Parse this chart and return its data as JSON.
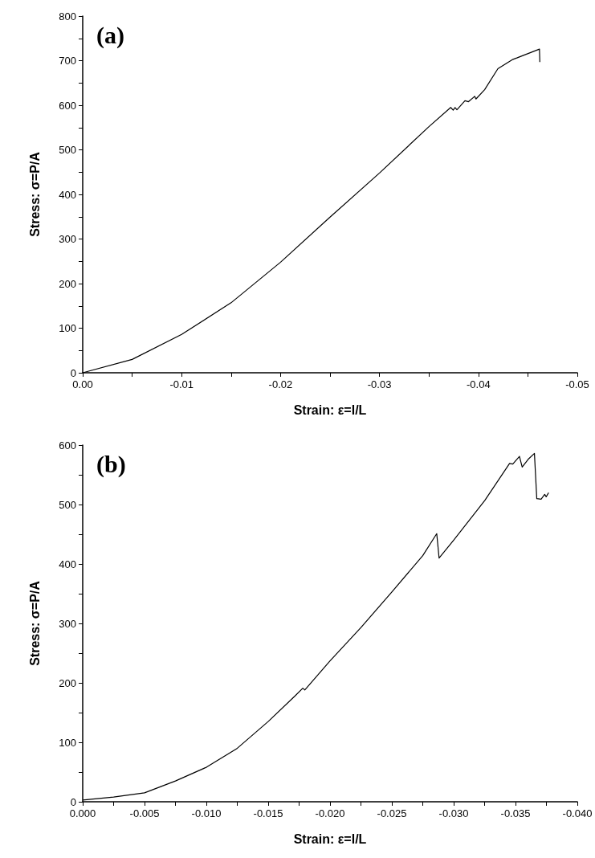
{
  "chart_data": [
    {
      "type": "line",
      "xlabel": "Strain: ε=l/L",
      "ylabel": "Stress: σ=P/A",
      "annotations": [
        "(a)"
      ],
      "xlim": [
        0,
        -0.05
      ],
      "ylim": [
        0,
        800
      ],
      "xticks": [
        {
          "value": 0,
          "label": "0.00"
        },
        {
          "value": -0.005,
          "label": null
        },
        -0.01,
        {
          "value": -0.015,
          "label": null
        },
        -0.02,
        {
          "value": -0.025,
          "label": null
        },
        -0.03,
        {
          "value": -0.035,
          "label": null
        },
        -0.04,
        {
          "value": -0.045,
          "label": null
        },
        -0.05
      ],
      "yticks": [
        0,
        {
          "value": 50,
          "label": null
        },
        100,
        {
          "value": 150,
          "label": null
        },
        200,
        {
          "value": 250,
          "label": null
        },
        300,
        {
          "value": 350,
          "label": null
        },
        400,
        {
          "value": 450,
          "label": null
        },
        500,
        {
          "value": 550,
          "label": null
        },
        600,
        {
          "value": 650,
          "label": null
        },
        700,
        {
          "value": 750,
          "label": null
        },
        800
      ],
      "grid": false,
      "marker": "none",
      "line_style": "solid",
      "series": [
        {
          "color": "#000000",
          "x": [
            0,
            -0.005,
            -0.01,
            -0.015,
            -0.02,
            -0.025,
            -0.03,
            -0.035,
            -0.0372,
            -0.03745,
            -0.03764,
            -0.03783,
            -0.03864,
            -0.039,
            -0.03963,
            -0.03975,
            -0.04063,
            -0.04197,
            -0.0435,
            -0.04388,
            -0.04617,
            -0.04621
          ],
          "values": [
            0,
            30,
            86,
            157,
            248,
            349,
            448,
            552,
            595,
            589,
            595,
            590,
            610,
            608,
            620,
            614,
            635,
            682,
            703,
            706,
            726,
            697
          ]
        }
      ]
    },
    {
      "type": "line",
      "xlabel": "Strain: ε=l/L",
      "ylabel": "Stress: σ=P/A",
      "annotations": [
        "(b)"
      ],
      "xlim": [
        0,
        -0.04
      ],
      "ylim": [
        0,
        600
      ],
      "xticks": [
        {
          "value": 0,
          "label": "0.000"
        },
        {
          "value": -0.0025,
          "label": null
        },
        {
          "value": -0.005,
          "label": "-0.005"
        },
        {
          "value": -0.0075,
          "label": null
        },
        {
          "value": -0.01,
          "label": "-0.010"
        },
        {
          "value": -0.0125,
          "label": null
        },
        {
          "value": -0.015,
          "label": "-0.015"
        },
        {
          "value": -0.0175,
          "label": null
        },
        {
          "value": -0.02,
          "label": "-0.020"
        },
        {
          "value": -0.0225,
          "label": null
        },
        {
          "value": -0.025,
          "label": "-0.025"
        },
        {
          "value": -0.0275,
          "label": null
        },
        {
          "value": -0.03,
          "label": "-0.030"
        },
        {
          "value": -0.0325,
          "label": null
        },
        {
          "value": -0.035,
          "label": "-0.035"
        },
        {
          "value": -0.0375,
          "label": null
        },
        {
          "value": -0.04,
          "label": "-0.040"
        }
      ],
      "yticks": [
        0,
        {
          "value": 50,
          "label": null
        },
        100,
        {
          "value": 150,
          "label": null
        },
        200,
        {
          "value": 250,
          "label": null
        },
        300,
        {
          "value": 350,
          "label": null
        },
        400,
        {
          "value": 450,
          "label": null
        },
        500,
        {
          "value": 550,
          "label": null
        },
        600
      ],
      "grid": false,
      "marker": "none",
      "line_style": "solid",
      "series": [
        {
          "color": "#000000",
          "x": [
            0,
            -0.0025,
            -0.005,
            -0.0075,
            -0.01,
            -0.0125,
            -0.015,
            -0.01717,
            -0.0178,
            -0.01796,
            -0.02,
            -0.0225,
            -0.025,
            -0.0275,
            -0.02863,
            -0.02882,
            -0.03,
            -0.03252,
            -0.03452,
            -0.03478,
            -0.03532,
            -0.03554,
            -0.03602,
            -0.03653,
            -0.03672,
            -0.03707,
            -0.03736,
            -0.03748,
            -0.03768
          ],
          "values": [
            3,
            8,
            15,
            35,
            58,
            90,
            135,
            178,
            191,
            188,
            237,
            293,
            353,
            414,
            451,
            410,
            440,
            507,
            569,
            568,
            581,
            563,
            576,
            586,
            510,
            509,
            517,
            513,
            520
          ]
        }
      ]
    }
  ]
}
